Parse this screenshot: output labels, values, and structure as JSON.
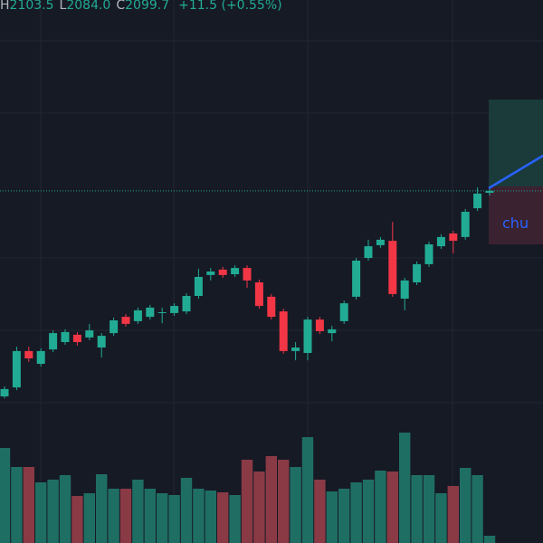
{
  "header": {
    "items": [
      {
        "label": "H",
        "value": "2103.5"
      },
      {
        "label": "L",
        "value": "2084.0"
      },
      {
        "label": "C",
        "value": "2099.7"
      }
    ],
    "change": "+11.5 (+0.55%)"
  },
  "chart_data": {
    "type": "candlestick",
    "position_label": "chu",
    "open": [
      2024.0,
      2027.3,
      2040.7,
      2036.0,
      2041.3,
      2044.0,
      2046.7,
      2045.7,
      2042.0,
      2047.3,
      2053.3,
      2051.7,
      2053.3,
      2054.7,
      2054.7,
      2055.3,
      2061.0,
      2068.7,
      2070.7,
      2069.0,
      2071.3,
      2066.0,
      2060.7,
      2055.3,
      2040.7,
      2040.0,
      2052.3,
      2047.3,
      2051.7,
      2060.7,
      2075.0,
      2079.7,
      2081.3,
      2060.0,
      2066.0,
      2072.7,
      2079.3,
      2084.0,
      2082.7,
      2093.3,
      2099.0
    ],
    "high": [
      2027.7,
      2042.3,
      2042.3,
      2041.7,
      2048.3,
      2048.7,
      2047.7,
      2050.7,
      2047.3,
      2053.0,
      2054.3,
      2056.7,
      2057.7,
      2056.7,
      2058.3,
      2062.0,
      2071.0,
      2071.3,
      2071.7,
      2072.3,
      2072.3,
      2067.0,
      2061.7,
      2056.3,
      2044.0,
      2053.3,
      2053.3,
      2050.0,
      2059.3,
      2075.0,
      2081.7,
      2082.7,
      2088.3,
      2067.7,
      2073.7,
      2081.0,
      2083.7,
      2085.0,
      2093.0,
      2101.0,
      2101.3
    ],
    "low": [
      2023.3,
      2026.3,
      2036.7,
      2035.0,
      2040.3,
      2043.0,
      2042.7,
      2044.7,
      2038.3,
      2046.3,
      2049.7,
      2050.7,
      2052.3,
      2051.0,
      2053.7,
      2054.3,
      2060.0,
      2066.7,
      2067.7,
      2068.0,
      2064.0,
      2056.3,
      2052.3,
      2039.7,
      2037.3,
      2037.3,
      2047.0,
      2044.3,
      2050.7,
      2059.7,
      2074.0,
      2078.7,
      2060.7,
      2055.7,
      2065.0,
      2071.7,
      2078.3,
      2076.7,
      2081.7,
      2092.3,
      2098.0
    ],
    "close": [
      2026.7,
      2040.7,
      2038.0,
      2040.7,
      2047.3,
      2047.7,
      2044.0,
      2048.3,
      2046.3,
      2052.0,
      2050.7,
      2055.7,
      2056.7,
      2055.0,
      2057.3,
      2061.0,
      2068.0,
      2070.0,
      2068.7,
      2071.3,
      2066.7,
      2057.3,
      2053.3,
      2040.7,
      2042.0,
      2052.3,
      2048.0,
      2048.7,
      2058.3,
      2074.0,
      2079.3,
      2081.7,
      2061.7,
      2066.7,
      2072.7,
      2080.0,
      2082.7,
      2081.3,
      2092.0,
      2098.7,
      2099.7
    ],
    "volume": [
      105,
      84,
      84,
      67,
      70,
      75,
      52,
      55,
      76,
      60,
      60,
      70,
      60,
      55,
      53,
      72,
      60,
      58,
      56,
      53,
      92,
      79,
      96,
      92,
      84,
      117,
      70,
      57,
      60,
      67,
      70,
      80,
      79,
      122,
      75,
      75,
      55,
      63,
      83,
      75,
      8
    ],
    "ylim": [
      1970,
      2170
    ],
    "vlim": [
      0,
      600
    ],
    "up_color": "#22ab94",
    "down_color": "#f23645",
    "volume_up_color": "#1f6e64",
    "volume_down_color": "#8a3a45"
  }
}
